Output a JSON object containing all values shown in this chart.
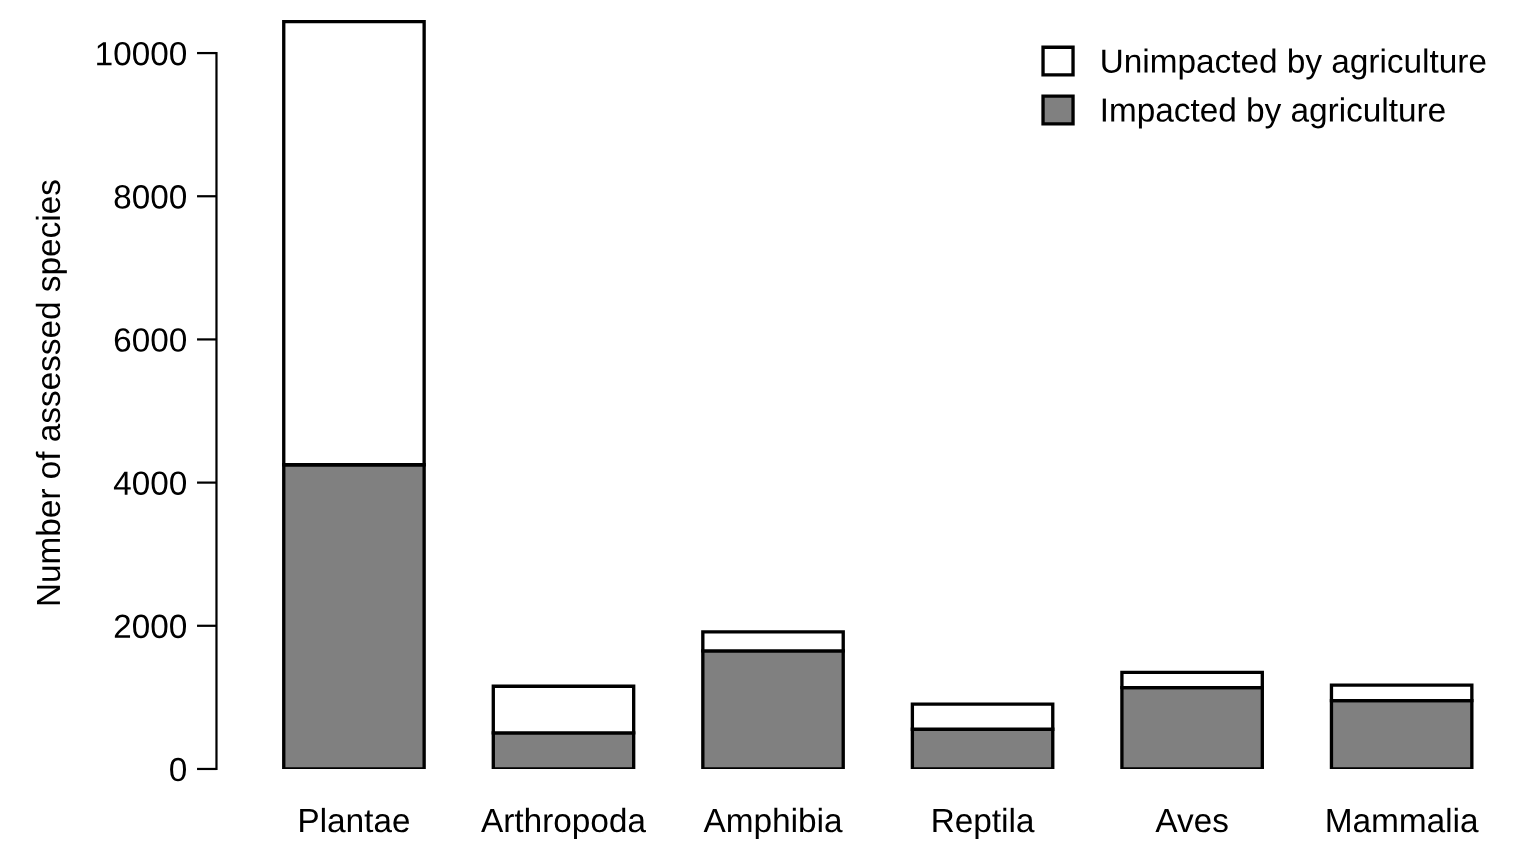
{
  "chart_data": {
    "type": "bar",
    "stacked": true,
    "ylabel": "Number of assessed species",
    "categories": [
      "Plantae",
      "Arthropoda",
      "Amphibia",
      "Reptila",
      "Aves",
      "Mammalia"
    ],
    "series": [
      {
        "name": "Impacted by agriculture",
        "color": "#808080",
        "values": [
          4250,
          505,
          1650,
          555,
          1135,
          955
        ]
      },
      {
        "name": "Unimpacted by agriculture",
        "color": "#ffffff",
        "values": [
          6190,
          650,
          265,
          350,
          215,
          215
        ]
      }
    ],
    "ylim": [
      0,
      10500
    ],
    "yticks": [
      0,
      2000,
      4000,
      6000,
      8000,
      10000
    ],
    "grid": false,
    "legend": "top right"
  }
}
